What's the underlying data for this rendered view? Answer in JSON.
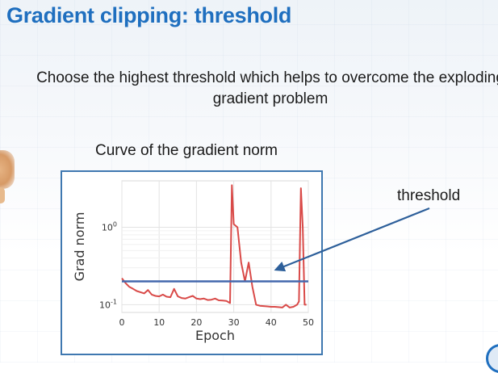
{
  "slide": {
    "title": "Gradient clipping: threshold",
    "subtitle": "Choose the highest threshold which helps to overcome the exploding gradient problem",
    "chart_caption": "Curve of the gradient norm",
    "callout_label": "threshold"
  },
  "colors": {
    "title": "#1f6fbf",
    "curve": "#d94a48",
    "threshold_line": "#4468ad",
    "arrow": "#2d5f9a",
    "frame": "#3f78b0"
  },
  "chart_data": {
    "type": "line",
    "xlabel": "Epoch",
    "ylabel": "Grad norm",
    "xlim": [
      0,
      50
    ],
    "ylim_log10": [
      -1.1,
      0.6
    ],
    "yscale": "log",
    "x_ticks": [
      "0",
      "10",
      "20",
      "30",
      "40",
      "50"
    ],
    "y_ticks": [
      {
        "base": "10",
        "exp": "-1",
        "log10": -1
      },
      {
        "base": "10",
        "exp": "0",
        "log10": 0
      }
    ],
    "grid": true,
    "threshold": 0.2,
    "series": [
      {
        "x": [
          0,
          1,
          2,
          3,
          4,
          5,
          6,
          7,
          8,
          9,
          10,
          11,
          12,
          13,
          14,
          15,
          16,
          17,
          18,
          19,
          20,
          21,
          22,
          23,
          24,
          25,
          26,
          27,
          28,
          29,
          29.5,
          30,
          31,
          32,
          33,
          34,
          35,
          36,
          37,
          38,
          39,
          40,
          41,
          42,
          43,
          44,
          45,
          46,
          47,
          47.5,
          48,
          48.5,
          49,
          49.5
        ],
        "y": [
          0.22,
          0.19,
          0.17,
          0.16,
          0.15,
          0.145,
          0.14,
          0.155,
          0.135,
          0.13,
          0.128,
          0.135,
          0.127,
          0.125,
          0.16,
          0.128,
          0.122,
          0.12,
          0.125,
          0.13,
          0.12,
          0.118,
          0.12,
          0.115,
          0.116,
          0.12,
          0.114,
          0.113,
          0.112,
          0.105,
          3.5,
          1.1,
          1.0,
          0.35,
          0.2,
          0.35,
          0.17,
          0.1,
          0.097,
          0.096,
          0.095,
          0.094,
          0.094,
          0.093,
          0.092,
          0.1,
          0.092,
          0.094,
          0.1,
          0.11,
          3.2,
          1.0,
          0.1,
          0.1
        ]
      }
    ]
  }
}
